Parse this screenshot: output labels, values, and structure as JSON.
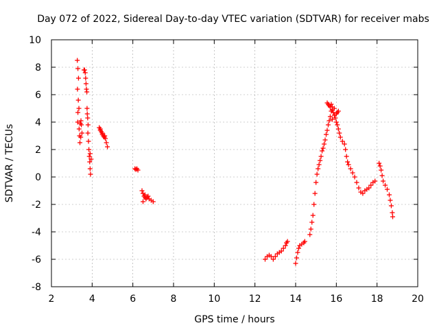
{
  "chart_data": {
    "type": "scatter",
    "title": "Day 072 of 2022, Sidereal Day-to-day VTEC variation (SDTVAR) for receiver mabs",
    "xlabel": "GPS time / hours",
    "ylabel": "SDTVAR / TECUs",
    "xlim": [
      2,
      20
    ],
    "ylim": [
      -8,
      10
    ],
    "xticks": [
      2,
      4,
      6,
      8,
      10,
      12,
      14,
      16,
      18,
      20
    ],
    "yticks": [
      -8,
      -6,
      -4,
      -2,
      0,
      2,
      4,
      6,
      8,
      10
    ],
    "grid": true,
    "marker": "+",
    "series": [
      {
        "name": "SDTVAR",
        "color": "#ff0000",
        "points": [
          [
            3.27,
            8.5
          ],
          [
            3.3,
            7.9
          ],
          [
            3.33,
            7.2
          ],
          [
            3.28,
            6.4
          ],
          [
            3.32,
            5.6
          ],
          [
            3.35,
            5.0
          ],
          [
            3.3,
            4.7
          ],
          [
            3.29,
            4.0
          ],
          [
            3.36,
            3.5
          ],
          [
            3.38,
            3.0
          ],
          [
            3.4,
            2.5
          ],
          [
            3.42,
            3.9
          ],
          [
            3.45,
            4.1
          ],
          [
            3.47,
            3.8
          ],
          [
            3.5,
            3.2
          ],
          [
            3.44,
            2.9
          ],
          [
            3.6,
            7.8
          ],
          [
            3.63,
            7.8
          ],
          [
            3.66,
            7.6
          ],
          [
            3.68,
            7.2
          ],
          [
            3.7,
            6.8
          ],
          [
            3.72,
            6.4
          ],
          [
            3.74,
            6.2
          ],
          [
            3.75,
            5.0
          ],
          [
            3.76,
            4.6
          ],
          [
            3.78,
            4.3
          ],
          [
            3.8,
            3.8
          ],
          [
            3.79,
            3.2
          ],
          [
            3.82,
            2.6
          ],
          [
            3.84,
            2.0
          ],
          [
            3.86,
            1.5
          ],
          [
            3.88,
            1.1
          ],
          [
            3.9,
            0.6
          ],
          [
            3.92,
            0.2
          ],
          [
            3.95,
            1.3
          ],
          [
            3.9,
            1.7
          ],
          [
            4.35,
            3.6
          ],
          [
            4.4,
            3.4
          ],
          [
            4.45,
            3.3
          ],
          [
            4.5,
            3.1
          ],
          [
            4.55,
            3.0
          ],
          [
            4.6,
            2.9
          ],
          [
            4.65,
            2.8
          ],
          [
            4.7,
            2.5
          ],
          [
            4.75,
            2.2
          ],
          [
            4.4,
            3.5
          ],
          [
            4.5,
            3.2
          ],
          [
            4.62,
            3.0
          ],
          [
            6.1,
            0.6
          ],
          [
            6.15,
            0.55
          ],
          [
            6.2,
            0.6
          ],
          [
            6.25,
            0.5
          ],
          [
            6.45,
            -1.0
          ],
          [
            6.5,
            -1.2
          ],
          [
            6.55,
            -1.4
          ],
          [
            6.6,
            -1.5
          ],
          [
            6.65,
            -1.6
          ],
          [
            6.7,
            -1.5
          ],
          [
            6.75,
            -1.4
          ],
          [
            6.8,
            -1.6
          ],
          [
            6.9,
            -1.7
          ],
          [
            7.0,
            -1.8
          ],
          [
            6.5,
            -1.8
          ],
          [
            6.6,
            -1.3
          ],
          [
            12.5,
            -6.0
          ],
          [
            12.6,
            -5.8
          ],
          [
            12.7,
            -5.7
          ],
          [
            12.8,
            -5.8
          ],
          [
            12.9,
            -6.0
          ],
          [
            13.0,
            -5.8
          ],
          [
            13.1,
            -5.6
          ],
          [
            13.2,
            -5.5
          ],
          [
            13.3,
            -5.4
          ],
          [
            13.4,
            -5.2
          ],
          [
            13.5,
            -5.0
          ],
          [
            13.55,
            -4.8
          ],
          [
            13.6,
            -4.7
          ],
          [
            14.0,
            -6.3
          ],
          [
            14.05,
            -5.9
          ],
          [
            14.1,
            -5.5
          ],
          [
            14.15,
            -5.2
          ],
          [
            14.2,
            -5.0
          ],
          [
            14.3,
            -4.9
          ],
          [
            14.4,
            -4.8
          ],
          [
            14.45,
            -4.7
          ],
          [
            14.7,
            -4.2
          ],
          [
            14.75,
            -3.8
          ],
          [
            14.8,
            -3.3
          ],
          [
            14.85,
            -2.8
          ],
          [
            14.9,
            -2.0
          ],
          [
            14.95,
            -1.2
          ],
          [
            15.0,
            -0.4
          ],
          [
            15.05,
            0.2
          ],
          [
            15.1,
            0.6
          ],
          [
            15.15,
            0.9
          ],
          [
            15.2,
            1.2
          ],
          [
            15.25,
            1.5
          ],
          [
            15.3,
            1.9
          ],
          [
            15.35,
            2.1
          ],
          [
            15.4,
            2.4
          ],
          [
            15.45,
            2.7
          ],
          [
            15.5,
            3.1
          ],
          [
            15.55,
            3.4
          ],
          [
            15.6,
            3.8
          ],
          [
            15.65,
            4.1
          ],
          [
            15.7,
            4.4
          ],
          [
            15.75,
            4.8
          ],
          [
            15.8,
            5.1
          ],
          [
            15.9,
            5.0
          ],
          [
            15.55,
            5.4
          ],
          [
            15.6,
            5.3
          ],
          [
            15.65,
            5.2
          ],
          [
            15.7,
            5.1
          ],
          [
            15.75,
            5.3
          ],
          [
            15.8,
            4.9
          ],
          [
            15.85,
            4.7
          ],
          [
            15.9,
            4.5
          ],
          [
            15.95,
            4.3
          ],
          [
            16.0,
            4.0
          ],
          [
            16.05,
            3.8
          ],
          [
            16.1,
            3.5
          ],
          [
            16.15,
            3.2
          ],
          [
            16.2,
            2.9
          ],
          [
            16.3,
            2.6
          ],
          [
            16.4,
            2.4
          ],
          [
            16.45,
            2.0
          ],
          [
            16.5,
            1.5
          ],
          [
            16.55,
            1.1
          ],
          [
            16.6,
            0.9
          ],
          [
            16.7,
            0.6
          ],
          [
            16.8,
            0.3
          ],
          [
            16.9,
            0.0
          ],
          [
            17.0,
            -0.4
          ],
          [
            17.1,
            -0.8
          ],
          [
            17.2,
            -1.1
          ],
          [
            17.3,
            -1.2
          ],
          [
            17.4,
            -1.0
          ],
          [
            17.5,
            -0.9
          ],
          [
            17.6,
            -0.8
          ],
          [
            17.7,
            -0.6
          ],
          [
            17.8,
            -0.4
          ],
          [
            17.9,
            -0.3
          ],
          [
            15.8,
            4.2
          ],
          [
            16.0,
            4.6
          ],
          [
            16.05,
            4.7
          ],
          [
            16.1,
            4.8
          ],
          [
            18.1,
            1.0
          ],
          [
            18.15,
            0.8
          ],
          [
            18.2,
            0.5
          ],
          [
            18.25,
            0.1
          ],
          [
            18.3,
            -0.3
          ],
          [
            18.4,
            -0.6
          ],
          [
            18.5,
            -0.9
          ],
          [
            18.6,
            -1.3
          ],
          [
            18.65,
            -1.7
          ],
          [
            18.7,
            -2.1
          ],
          [
            18.75,
            -2.6
          ],
          [
            18.77,
            -2.9
          ]
        ]
      }
    ]
  }
}
